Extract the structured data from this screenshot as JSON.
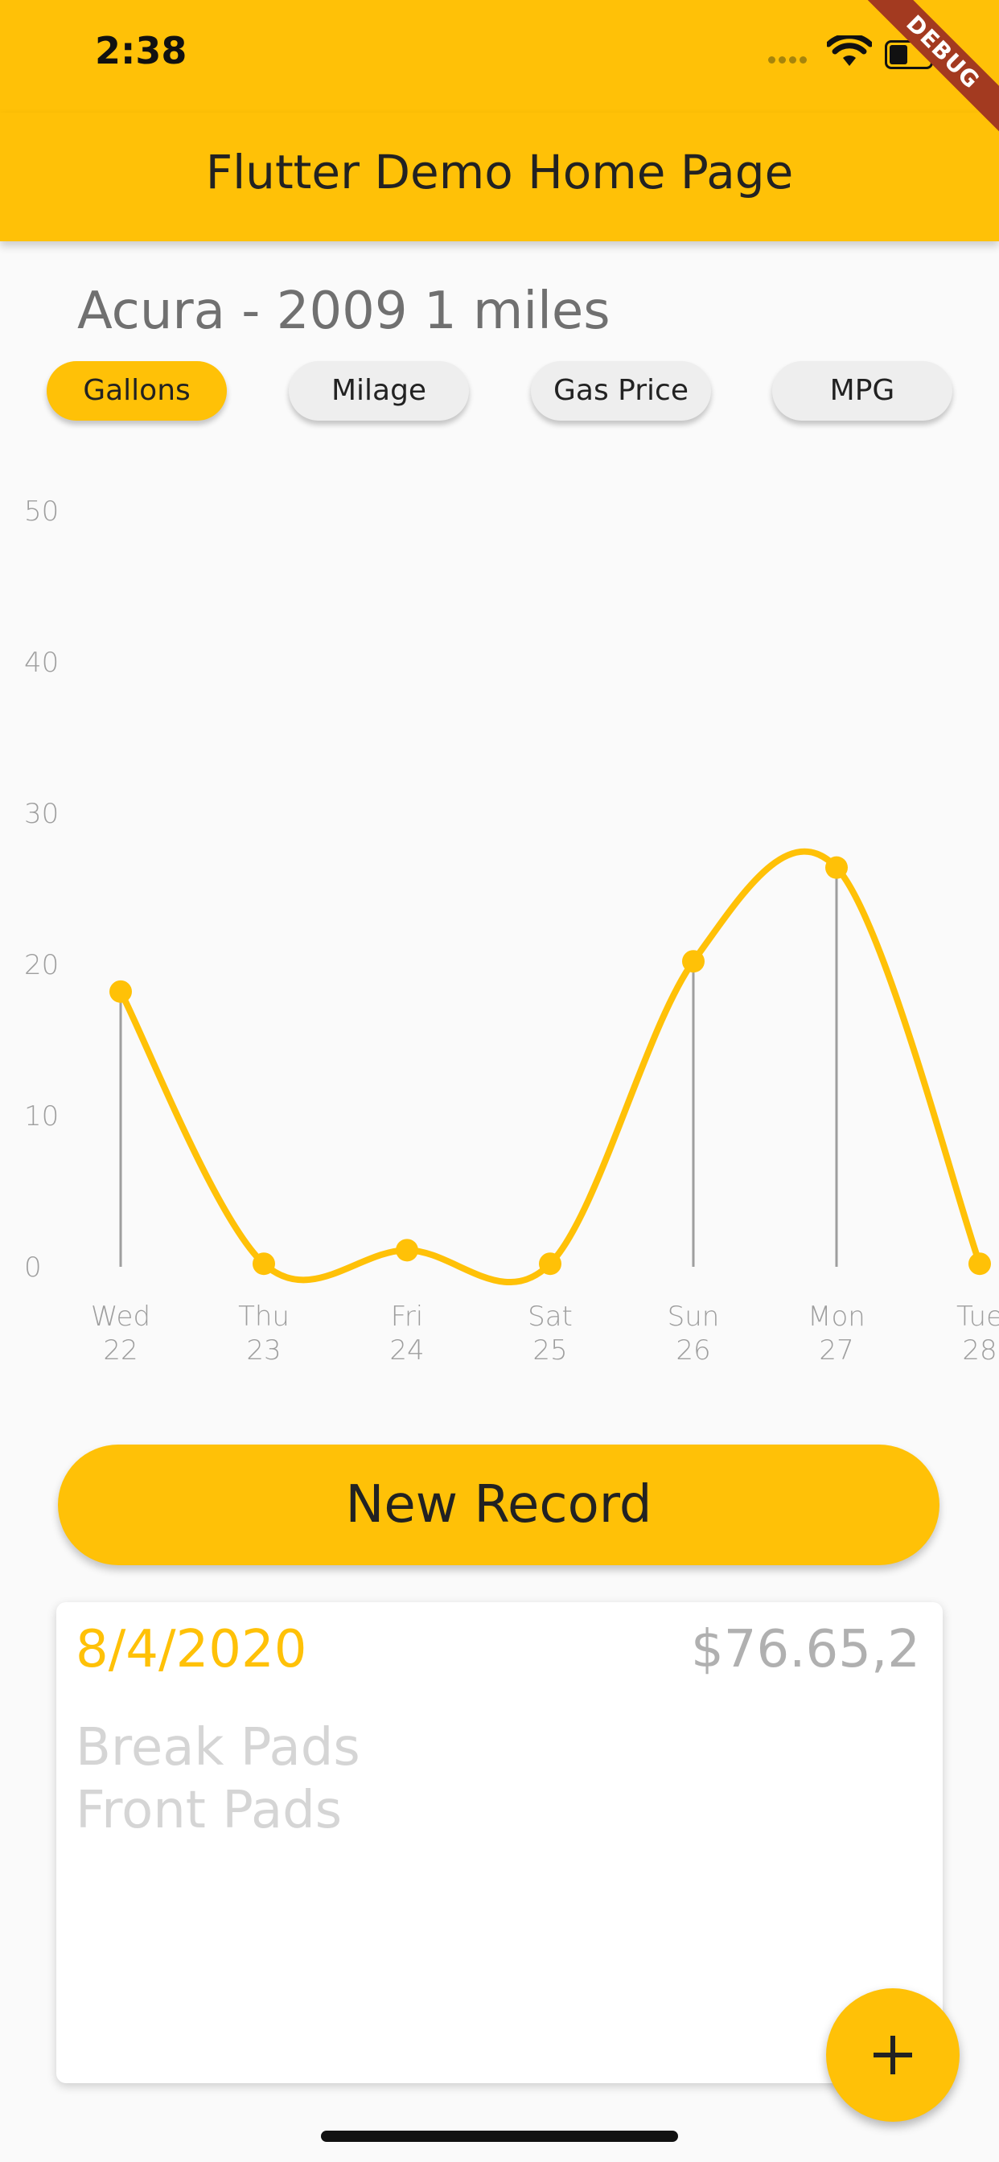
{
  "status_bar": {
    "time": "2:38",
    "icons": [
      "signal-icon",
      "wifi-icon",
      "battery-icon"
    ]
  },
  "debug_banner": "DEBUG",
  "app_bar": {
    "title": "Flutter Demo Home Page"
  },
  "vehicle": {
    "summary": "Acura - 2009 1 miles"
  },
  "chips": [
    {
      "label": "Gallons",
      "selected": true
    },
    {
      "label": "Milage",
      "selected": false
    },
    {
      "label": "Gas Price",
      "selected": false
    },
    {
      "label": "MPG",
      "selected": false
    }
  ],
  "chart_data": {
    "type": "line",
    "title": "",
    "xlabel": "",
    "ylabel": "",
    "ylim": [
      0,
      50
    ],
    "y_ticks": [
      "50",
      "40",
      "30",
      "20",
      "10",
      "0"
    ],
    "categories": [
      {
        "day": "Wed",
        "date": "22"
      },
      {
        "day": "Thu",
        "date": "23"
      },
      {
        "day": "Fri",
        "date": "24"
      },
      {
        "day": "Sat",
        "date": "25"
      },
      {
        "day": "Sun",
        "date": "26"
      },
      {
        "day": "Mon",
        "date": "27"
      },
      {
        "day": "Tue",
        "date": "28"
      }
    ],
    "series": [
      {
        "values": [
          18.2,
          0.2,
          1.1,
          0.2,
          20.2,
          26.4,
          0.2
        ]
      }
    ],
    "line_color": "#ffc107",
    "smooth": true,
    "grid": false
  },
  "actions": {
    "new_record_label": "New Record"
  },
  "record": {
    "date": "8/4/2020",
    "price": "$76.65,2",
    "lines": [
      "Break Pads",
      "Front Pads"
    ]
  },
  "fab": {
    "icon": "plus-icon"
  },
  "colors": {
    "accent": "#ffc107",
    "background": "#fafafa",
    "ribbon": "#a33a20"
  }
}
